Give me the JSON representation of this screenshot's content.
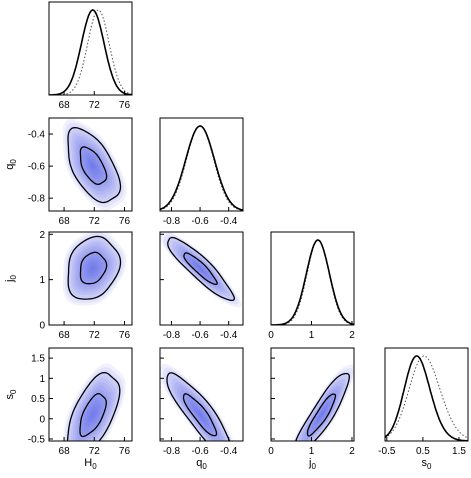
{
  "chart_data": {
    "type": "triangle-plot",
    "parameters": [
      {
        "label": "H",
        "sub": "0",
        "range": [
          66,
          77
        ],
        "ticks": [
          68,
          72,
          76
        ],
        "tick_labels": [
          "68",
          "72",
          "76"
        ],
        "mean": 71.8,
        "sd": 1.5,
        "skew": 0.0,
        "comp_shift": 0.5,
        "comp_width": 0.95
      },
      {
        "label": "q",
        "sub": "0",
        "range": [
          -0.88,
          -0.3
        ],
        "ticks": [
          -0.8,
          -0.6,
          -0.4
        ],
        "tick_labels": [
          "-0.8",
          "-0.6",
          "-0.4"
        ],
        "mean": -0.6,
        "sd": 0.1,
        "skew": 0.0,
        "comp_shift": 0.0,
        "comp_width": 0.95
      },
      {
        "label": "j",
        "sub": "0",
        "range": [
          0,
          2.05
        ],
        "ticks": [
          0,
          1,
          2
        ],
        "tick_labels": [
          "0",
          "1",
          "2"
        ],
        "mean": 1.25,
        "sd": 0.3,
        "skew": -0.4,
        "comp_shift": 0.0,
        "comp_width": 0.95
      },
      {
        "label": "s",
        "sub": "0",
        "range": [
          -0.55,
          1.75
        ],
        "ticks": [
          -0.5,
          0,
          0.5,
          1,
          1.5
        ],
        "tick_labels": [
          "-0.5",
          "0",
          "0.5",
          "1",
          "1.5"
        ],
        "x_ticks": [
          -0.5,
          0.5,
          1.5
        ],
        "x_tick_labels": [
          "-0.5",
          "0.5",
          "1.5"
        ],
        "mean": 0.1,
        "sd": 0.45,
        "skew": 1.0,
        "comp_shift": 0.35,
        "comp_width": 1.2
      }
    ],
    "correlations": [
      {
        "i": 1,
        "j": 0,
        "rho": -0.55
      },
      {
        "i": 2,
        "j": 0,
        "rho": 0.2
      },
      {
        "i": 2,
        "j": 1,
        "rho": -0.9
      },
      {
        "i": 3,
        "j": 0,
        "rho": 0.6
      },
      {
        "i": 3,
        "j": 1,
        "rho": -0.88
      },
      {
        "i": 3,
        "j": 2,
        "rho": 0.9
      }
    ],
    "contour_levels_sigma": [
      1,
      2
    ],
    "colors": {
      "fill": "#2b3fe6",
      "line": "#000000",
      "comparison": "#555555"
    },
    "series": [
      {
        "style": "solid"
      },
      {
        "style": "dotted"
      }
    ]
  }
}
